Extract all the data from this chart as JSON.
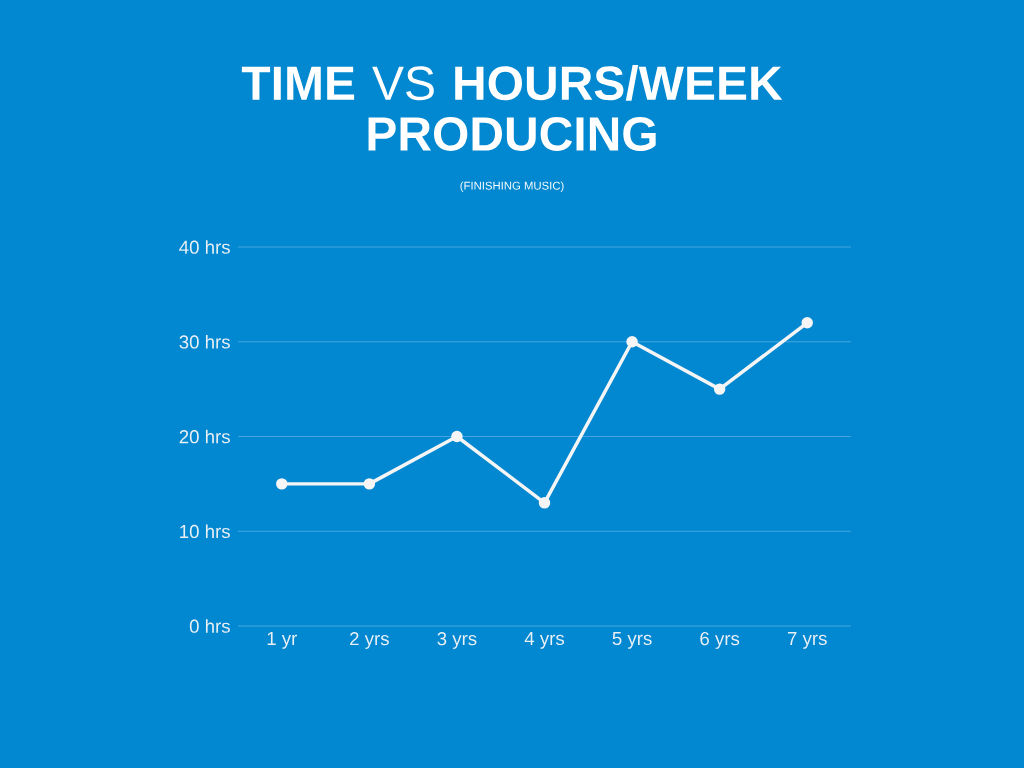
{
  "chart_data": {
    "type": "line",
    "title": "**TIME** VS **HOURS/WEEK PRODUCING**",
    "subtitle": "(FINISHING MUSIC)",
    "categories": [
      "1 yr",
      "2 yrs",
      "3 yrs",
      "4 yrs",
      "5 yrs",
      "6 yrs",
      "7 yrs"
    ],
    "series": [
      {
        "color": "#f5f5f5",
        "values": [
          15,
          15,
          20,
          13,
          30,
          25,
          32
        ]
      }
    ],
    "ylim": [
      0,
      40
    ],
    "yticks": [
      {
        "value": 0,
        "label": "0 hrs"
      },
      {
        "value": 10,
        "label": "10 hrs"
      },
      {
        "value": 20,
        "label": "20 hrs"
      },
      {
        "value": 30,
        "label": "30 hrs"
      },
      {
        "value": 40,
        "label": "40 hrs"
      }
    ],
    "grid": "y",
    "marker": "circle",
    "line_style": "solid"
  }
}
